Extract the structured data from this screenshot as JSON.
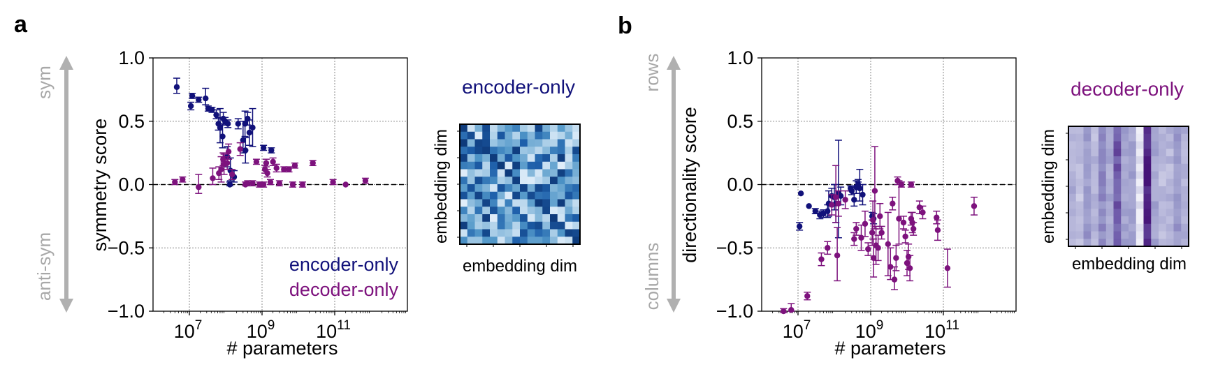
{
  "panels": {
    "a": {
      "letter": "a",
      "y_label": "symmetry score",
      "x_label": "# parameters",
      "arrow_top": "sym",
      "arrow_bottom": "anti-sym",
      "legend": [
        "encoder-only",
        "decoder-only"
      ],
      "inset_title": "encoder-only",
      "inset_xlabel": "embedding dim",
      "inset_ylabel": "embedding dim"
    },
    "b": {
      "letter": "b",
      "y_label": "directionality score",
      "x_label": "# parameters",
      "arrow_top": "rows",
      "arrow_bottom": "columns",
      "inset_title": "decoder-only",
      "inset_xlabel": "embedding dim",
      "inset_ylabel": "embedding dim"
    }
  },
  "colors": {
    "encoder": "#11117a",
    "decoder": "#7d127d",
    "arrow": "#b0b0b0",
    "inset_a": "blues",
    "inset_b": "purples"
  },
  "chart_data": [
    {
      "type": "scatter",
      "title": "",
      "xlabel": "# parameters",
      "ylabel": "symmetry score",
      "xscale": "log",
      "xlim": [
        1000000,
        10000000000000
      ],
      "ylim": [
        -1.0,
        1.0
      ],
      "xticks": [
        10000000,
        1000000000,
        100000000000
      ],
      "xtick_labels": [
        "10^7",
        "10^9",
        "10^11"
      ],
      "yticks": [
        -1.0,
        -0.5,
        0.0,
        0.5,
        1.0
      ],
      "ytick_labels": [
        "−1.0",
        "−0.5",
        "0.0",
        "0.5",
        "1.0"
      ],
      "grid": true,
      "reference_line": 0.0,
      "legend_position": "lower-right",
      "series": [
        {
          "name": "encoder-only",
          "points": [
            [
              4500000.0,
              0.77,
              0.07,
              0.05
            ],
            [
              11000000.0,
              0.62,
              0.03,
              0.03
            ],
            [
              12000000.0,
              0.7,
              0.02,
              0.02
            ],
            [
              18000000.0,
              0.67,
              0.02,
              0.02
            ],
            [
              28000000.0,
              0.68,
              0.08,
              0.05
            ],
            [
              33000000.0,
              0.6,
              0.02,
              0.02
            ],
            [
              42000000.0,
              0.59,
              0.02,
              0.02
            ],
            [
              55000000.0,
              0.55,
              0.04,
              0.03
            ],
            [
              63000000.0,
              0.48,
              0.05,
              0.05
            ],
            [
              70000000.0,
              0.45,
              0.15,
              0.12
            ],
            [
              82000000.0,
              0.38,
              0.1,
              0.09
            ],
            [
              86000000.0,
              0.52,
              0.05,
              0.05
            ],
            [
              96000000.0,
              0.5,
              0.03,
              0.03
            ],
            [
              110000000.0,
              0.22,
              0.08,
              0.08
            ],
            [
              115000000.0,
              0.48,
              0.03,
              0.03
            ],
            [
              130000000.0,
              0.0,
              0.02,
              0.01
            ],
            [
              135000000.0,
              0.11,
              0.1,
              0.08
            ],
            [
              170000000.0,
              0.06,
              0.05,
              0.04
            ],
            [
              220000000.0,
              0.48,
              0.04,
              0.04
            ],
            [
              300000000.0,
              0.35,
              0.15,
              0.1
            ],
            [
              340000000.0,
              0.48,
              0.1,
              0.1
            ],
            [
              350000000.0,
              0.27,
              0.1,
              0.1
            ],
            [
              400000000.0,
              0.52,
              0.05,
              0.05
            ],
            [
              450000000.0,
              0.41,
              0.1,
              0.1
            ],
            [
              550000000.0,
              0.45,
              0.15,
              0.15
            ],
            [
              1100000000.0,
              0.29,
              0.02,
              0.02
            ],
            [
              1800000000.0,
              0.27,
              0.02,
              0.02
            ]
          ]
        },
        {
          "name": "decoder-only",
          "points": [
            [
              4000000.0,
              0.02,
              0.02,
              0.02
            ],
            [
              6500000.0,
              0.04,
              0.02,
              0.02
            ],
            [
              18000000.0,
              -0.02,
              0.1,
              0.05
            ],
            [
              44000000.0,
              0.05,
              0.08,
              0.05
            ],
            [
              65000000.0,
              0.09,
              0.05,
              0.05
            ],
            [
              75000000.0,
              0.12,
              0.1,
              0.1
            ],
            [
              85000000.0,
              0.2,
              0.05,
              0.05
            ],
            [
              90000000.0,
              0.16,
              0.08,
              0.08
            ],
            [
              110000000.0,
              0.17,
              0.05,
              0.05
            ],
            [
              120000000.0,
              0.26,
              0.06,
              0.06
            ],
            [
              150000000.0,
              0.08,
              0.04,
              0.04
            ],
            [
              250000000.0,
              0.28,
              0.05,
              0.05
            ],
            [
              350000000.0,
              0.0,
              0.02,
              0.01
            ],
            [
              400000000.0,
              0.01,
              0.02,
              0.02
            ],
            [
              550000000.0,
              0.01,
              0.02,
              0.02
            ],
            [
              700000000.0,
              0.18,
              0.02,
              0.02
            ],
            [
              850000000.0,
              0.0,
              0.02,
              0.02
            ],
            [
              1100000000.0,
              0.0,
              0.02,
              0.02
            ],
            [
              1200000000.0,
              0.12,
              0.03,
              0.03
            ],
            [
              1300000000.0,
              0.17,
              0.03,
              0.03
            ],
            [
              1400000000.0,
              0.09,
              0.03,
              0.03
            ],
            [
              1700000000.0,
              0.02,
              0.02,
              0.02
            ],
            [
              2000000000.0,
              0.18,
              0.03,
              0.03
            ],
            [
              2500000000.0,
              0.13,
              0.03,
              0.03
            ],
            [
              3000000000.0,
              0.01,
              0.02,
              0.02
            ],
            [
              4000000000.0,
              0.12,
              0.02,
              0.02
            ],
            [
              5500000000.0,
              0.12,
              0.02,
              0.02
            ],
            [
              7000000000.0,
              0.0,
              0.02,
              0.02
            ],
            [
              8000000000.0,
              0.15,
              0.02,
              0.02
            ],
            [
              13000000000.0,
              0.0,
              0.02,
              0.02
            ],
            [
              25000000000.0,
              0.17,
              0.02,
              0.02
            ],
            [
              90000000000.0,
              0.02,
              0.02,
              0.02
            ],
            [
              200000000000.0,
              0.0,
              0.01,
              0.01
            ],
            [
              700000000000.0,
              0.03,
              0.02,
              0.02
            ]
          ]
        }
      ]
    },
    {
      "type": "scatter",
      "title": "",
      "xlabel": "# parameters",
      "ylabel": "directionality score",
      "xscale": "log",
      "xlim": [
        1000000,
        10000000000000
      ],
      "ylim": [
        -1.0,
        1.0
      ],
      "xticks": [
        10000000,
        1000000000,
        100000000000
      ],
      "xtick_labels": [
        "10^7",
        "10^9",
        "10^11"
      ],
      "yticks": [
        -1.0,
        -0.5,
        0.0,
        0.5,
        1.0
      ],
      "ytick_labels": [
        "−1.0",
        "−0.5",
        "0.0",
        "0.5",
        "1.0"
      ],
      "grid": true,
      "reference_line": 0.0,
      "series": [
        {
          "name": "encoder-only",
          "points": [
            [
              11000000.0,
              -0.33,
              0.03,
              0.03
            ],
            [
              12000000.0,
              -0.07,
              0.01,
              0.01
            ],
            [
              20000000.0,
              -0.17,
              0.01,
              0.01
            ],
            [
              30000000.0,
              -0.21,
              0.02,
              0.02
            ],
            [
              40000000.0,
              -0.24,
              0.03,
              0.03
            ],
            [
              50000000.0,
              -0.23,
              0.03,
              0.03
            ],
            [
              65000000.0,
              -0.21,
              0.05,
              0.05
            ],
            [
              70000000.0,
              -0.15,
              0.1,
              0.1
            ],
            [
              85000000.0,
              -0.09,
              0.06,
              0.06
            ],
            [
              100000000.0,
              -0.1,
              0.1,
              0.1
            ],
            [
              110000000.0,
              -0.15,
              0.15,
              0.15
            ],
            [
              130000000.0,
              -0.07,
              0.42,
              0.35
            ],
            [
              150000000.0,
              -0.09,
              0.07,
              0.07
            ],
            [
              280000000.0,
              -0.03,
              0.02,
              0.02
            ],
            [
              300000000.0,
              -0.05,
              0.03,
              0.03
            ],
            [
              350000000.0,
              -0.12,
              0.05,
              0.05
            ],
            [
              400000000.0,
              -0.02,
              0.05,
              0.05
            ],
            [
              450000000.0,
              0.0,
              0.04,
              0.04
            ],
            [
              500000000.0,
              -0.03,
              0.15,
              0.1
            ],
            [
              600000000.0,
              -0.08,
              0.08,
              0.08
            ],
            [
              1100000000.0,
              -0.25,
              0.03,
              0.03
            ],
            [
              1200000000.0,
              -0.27,
              0.04,
              0.04
            ],
            [
              450000000.0,
              -0.01,
              0.03,
              0.03
            ]
          ]
        },
        {
          "name": "decoder-only",
          "points": [
            [
              4000000.0,
              -1.0,
              0.02,
              0.01
            ],
            [
              6500000.0,
              -0.99,
              0.05,
              0.01
            ],
            [
              18000000.0,
              -0.88,
              0.03,
              0.03
            ],
            [
              44000000.0,
              -0.59,
              0.05,
              0.05
            ],
            [
              65000000.0,
              -0.5,
              0.05,
              0.05
            ],
            [
              85000000.0,
              -0.16,
              0.08,
              0.08
            ],
            [
              110000000.0,
              -0.1,
              0.25,
              0.2
            ],
            [
              120000000.0,
              -0.56,
              0.22,
              0.2
            ],
            [
              130000000.0,
              -0.15,
              0.1,
              0.1
            ],
            [
              200000000.0,
              -0.12,
              0.07,
              0.07
            ],
            [
              350000000.0,
              -0.43,
              0.05,
              0.05
            ],
            [
              400000000.0,
              -0.35,
              0.05,
              0.05
            ],
            [
              550000000.0,
              -0.42,
              0.1,
              0.1
            ],
            [
              700000000.0,
              -0.31,
              0.1,
              0.1
            ],
            [
              850000000.0,
              -0.51,
              0.05,
              0.05
            ],
            [
              1100000000.0,
              -0.38,
              0.1,
              0.1
            ],
            [
              1150000000.0,
              -0.28,
              0.15,
              0.15
            ],
            [
              1200000000.0,
              -0.58,
              0.15,
              0.15
            ],
            [
              1300000000.0,
              -0.05,
              0.35,
              0.3
            ],
            [
              1400000000.0,
              -0.48,
              0.15,
              0.15
            ],
            [
              1600000000.0,
              -0.5,
              0.1,
              0.1
            ],
            [
              1800000000.0,
              -0.25,
              0.1,
              0.1
            ],
            [
              2000000000.0,
              -0.38,
              0.05,
              0.05
            ],
            [
              3000000000.0,
              -0.47,
              0.25,
              0.25
            ],
            [
              3500000000.0,
              -0.65,
              0.15,
              0.1
            ],
            [
              4000000000.0,
              -0.15,
              0.05,
              0.05
            ],
            [
              4500000000.0,
              -0.75,
              0.1,
              0.08
            ],
            [
              5000000000.0,
              -0.58,
              0.1,
              0.1
            ],
            [
              5500000000.0,
              0.03,
              0.03,
              0.03
            ],
            [
              6000000000.0,
              -0.27,
              0.3,
              0.2
            ],
            [
              7000000000.0,
              0.0,
              0.02,
              0.02
            ],
            [
              8000000000.0,
              -0.3,
              0.05,
              0.05
            ],
            [
              9000000000.0,
              -0.41,
              0.05,
              0.05
            ],
            [
              10000000000.0,
              -0.62,
              0.1,
              0.1
            ],
            [
              11000000000.0,
              -0.57,
              0.1,
              0.1
            ],
            [
              12000000000.0,
              -0.66,
              0.1,
              0.1
            ],
            [
              13000000000.0,
              -0.27,
              0.05,
              0.05
            ],
            [
              14000000000.0,
              -0.3,
              0.08,
              0.08
            ],
            [
              15000000000.0,
              -0.35,
              0.05,
              0.05
            ],
            [
              22000000000.0,
              -0.18,
              0.05,
              0.05
            ],
            [
              27000000000.0,
              -0.22,
              0.05,
              0.05
            ],
            [
              13000000000.0,
              0.0,
              0.02,
              0.02
            ],
            [
              65000000000.0,
              -0.26,
              0.05,
              0.05
            ],
            [
              70000000000.0,
              -0.36,
              0.08,
              0.08
            ],
            [
              130000000000.0,
              -0.66,
              0.15,
              0.15
            ],
            [
              700000000000.0,
              -0.17,
              0.07,
              0.07
            ]
          ]
        }
      ]
    }
  ]
}
